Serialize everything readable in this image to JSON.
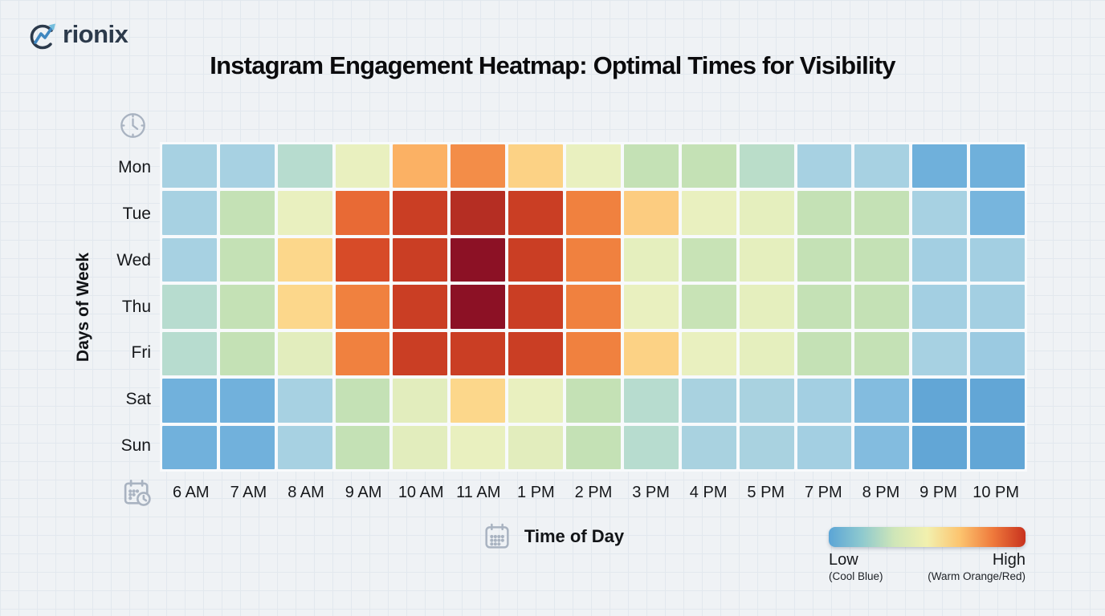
{
  "brand": {
    "full_name": "Orionix",
    "logo_text": "rionix",
    "logo_icon": "trending-up-circle-icon"
  },
  "title": "Instagram Engagement Heatmap: Optimal Times for Visibility",
  "axes": {
    "y_title": "Days of Week",
    "x_title": "Time of Day",
    "y_axis_icon": "clock-icon",
    "x_axis_icon": "calendar-clock-icon",
    "x_title_icon": "calendar-icon"
  },
  "legend": {
    "low_label": "Low",
    "low_sub": "(Cool Blue)",
    "high_label": "High",
    "high_sub": "(Warm Orange/Red)",
    "gradient": [
      "#5ba5d6",
      "#8ec9cf",
      "#cfe6b8",
      "#f2f0ae",
      "#fcc46f",
      "#ef7a3c",
      "#c8321e"
    ]
  },
  "colors": {
    "page_background": "#eff2f5",
    "page_gridline": "#e2e8ee",
    "logo_navy": "#2c3a4b",
    "logo_blue": "#3f87c0",
    "logo_lightblue": "#74bedd",
    "icon_gray": "#a9b3c1",
    "cell_gap": "#f8fafc",
    "heat_min_blue": "#599fd3",
    "heat_max_red": "#8c1125"
  },
  "chart_data": {
    "type": "heatmap",
    "title": "Instagram Engagement Heatmap: Optimal Times for Visibility",
    "xlabel": "Time of Day",
    "ylabel": "Days of Week",
    "columns": [
      "6 AM",
      "7 AM",
      "8 AM",
      "9 AM",
      "10 AM",
      "11 AM",
      "1 PM",
      "2 PM",
      "3 PM",
      "4 PM",
      "5 PM",
      "7 PM",
      "8 PM",
      "9 PM",
      "10 PM"
    ],
    "rows": [
      "Mon",
      "Tue",
      "Wed",
      "Thu",
      "Fri",
      "Sat",
      "Sun"
    ],
    "value_scale": "relative engagement index 0-100, estimated from cell color (blue = low, red = high)",
    "values": [
      [
        25,
        25,
        33,
        52,
        70,
        76,
        64,
        52,
        42,
        42,
        35,
        25,
        25,
        10,
        10
      ],
      [
        25,
        42,
        52,
        81,
        89,
        93,
        89,
        78,
        65,
        52,
        51,
        42,
        42,
        25,
        13
      ],
      [
        25,
        42,
        63,
        86,
        89,
        100,
        89,
        78,
        51,
        43,
        51,
        42,
        42,
        24,
        24
      ],
      [
        33,
        42,
        63,
        78,
        89,
        100,
        89,
        78,
        52,
        43,
        51,
        42,
        42,
        24,
        24
      ],
      [
        33,
        42,
        50,
        78,
        89,
        89,
        89,
        78,
        64,
        52,
        51,
        42,
        42,
        25,
        22
      ],
      [
        11,
        11,
        25,
        42,
        50,
        63,
        52,
        42,
        33,
        26,
        26,
        24,
        16,
        4,
        4
      ],
      [
        11,
        11,
        25,
        42,
        50,
        52,
        50,
        42,
        33,
        26,
        26,
        24,
        16,
        4,
        4
      ]
    ],
    "colorscale": [
      {
        "v": 0,
        "c": "#599fd3"
      },
      {
        "v": 12,
        "c": "#73b3dd"
      },
      {
        "v": 25,
        "c": "#a7d1e2"
      },
      {
        "v": 33,
        "c": "#b7dccf"
      },
      {
        "v": 42,
        "c": "#c4e1b5"
      },
      {
        "v": 52,
        "c": "#e9f0bf"
      },
      {
        "v": 63,
        "c": "#fcd78b"
      },
      {
        "v": 70,
        "c": "#fbb164"
      },
      {
        "v": 78,
        "c": "#f0813f"
      },
      {
        "v": 84,
        "c": "#e0532b"
      },
      {
        "v": 90,
        "c": "#c63a22"
      },
      {
        "v": 100,
        "c": "#8c1125"
      }
    ],
    "grid": false,
    "legend_position": "bottom-right"
  }
}
